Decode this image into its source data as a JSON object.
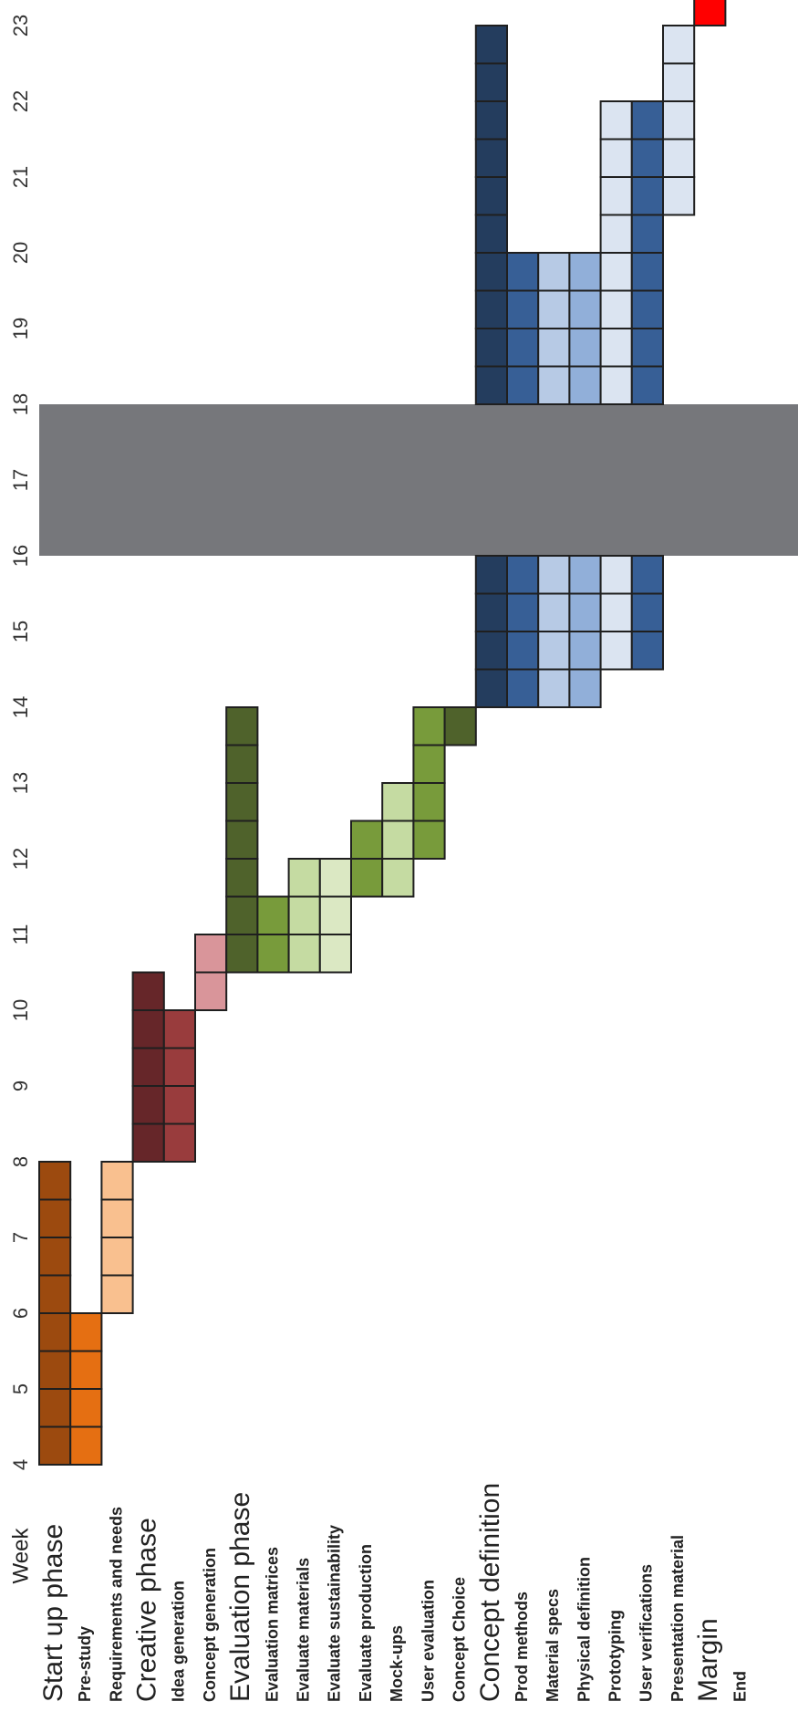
{
  "chart_data": {
    "type": "gantt",
    "orientation": "rotated",
    "axis_label": "Week",
    "weeks": [
      4,
      5,
      6,
      7,
      8,
      9,
      10,
      11,
      12,
      13,
      14,
      15,
      16,
      17,
      18,
      19,
      20,
      21,
      22,
      23
    ],
    "break": {
      "weeks": [
        16,
        17
      ],
      "color": "#76777b"
    },
    "rows": [
      {
        "label": "Start up phase",
        "kind": "phase",
        "color": "#9c4a0f",
        "start": 4,
        "end": 7.5
      },
      {
        "label": "Pre-study",
        "kind": "task",
        "color": "#e56f12",
        "start": 4,
        "end": 5.5
      },
      {
        "label": "Requirements and needs",
        "kind": "task",
        "color": "#f9c08f",
        "start": 6,
        "end": 7.5
      },
      {
        "label": "Creative phase",
        "kind": "phase",
        "color": "#662629",
        "start": 8,
        "end": 10
      },
      {
        "label": "Idea generation",
        "kind": "task",
        "color": "#993c3d",
        "start": 8,
        "end": 9.5
      },
      {
        "label": "Concept generation",
        "kind": "task",
        "color": "#d9959a",
        "start": 10,
        "end": 10.5
      },
      {
        "label": "Evaluation phase",
        "kind": "phase",
        "color": "#4f622b",
        "start": 10.5,
        "end": 13.5
      },
      {
        "label": "Evaluation matrices",
        "kind": "task",
        "color": "#789b3b",
        "start": 10.5,
        "end": 11
      },
      {
        "label": "Evaluate materials",
        "kind": "task",
        "color": "#c5dba2",
        "start": 10.5,
        "end": 11.5
      },
      {
        "label": "Evaluate sustainability",
        "kind": "task",
        "color": "#dbe8c3",
        "start": 10.5,
        "end": 11.5
      },
      {
        "label": "Evaluate production",
        "kind": "task",
        "color": "#789b3b",
        "start": 11.5,
        "end": 12
      },
      {
        "label": "Mock-ups",
        "kind": "task",
        "color": "#c5dba2",
        "start": 11.5,
        "end": 12.5
      },
      {
        "label": "User evaluation",
        "kind": "task",
        "color": "#789b3b",
        "start": 12,
        "end": 13.5
      },
      {
        "label": "Concept Choice",
        "kind": "task",
        "color": "#4f622b",
        "start": 13.5,
        "end": 13.5
      },
      {
        "label": "Concept definition",
        "kind": "phase",
        "color": "#243d5e",
        "start": 14,
        "end": 22.5
      },
      {
        "label": "Prod methods",
        "kind": "task",
        "color": "#375f96",
        "start": 14,
        "end": 19.5
      },
      {
        "label": "Material specs",
        "kind": "task",
        "color": "#b7cae5",
        "start": 14,
        "end": 19.5
      },
      {
        "label": "Physical definition",
        "kind": "task",
        "color": "#91afd9",
        "start": 14,
        "end": 19.5
      },
      {
        "label": "Prototyping",
        "kind": "task",
        "color": "#dbe4f1",
        "start": 14.5,
        "end": 21.5
      },
      {
        "label": "User verifications",
        "kind": "task",
        "color": "#375f96",
        "start": 14.5,
        "end": 21.5
      },
      {
        "label": "Presentation material",
        "kind": "task",
        "color": "#dbe4f1",
        "start": 20.5,
        "end": 22.5
      },
      {
        "label": "Margin",
        "kind": "phase",
        "color": "#ff0000",
        "start": 23,
        "end": 23.5
      },
      {
        "label": "End",
        "kind": "task",
        "color": "#ffffff",
        "start": null,
        "end": null
      }
    ]
  }
}
